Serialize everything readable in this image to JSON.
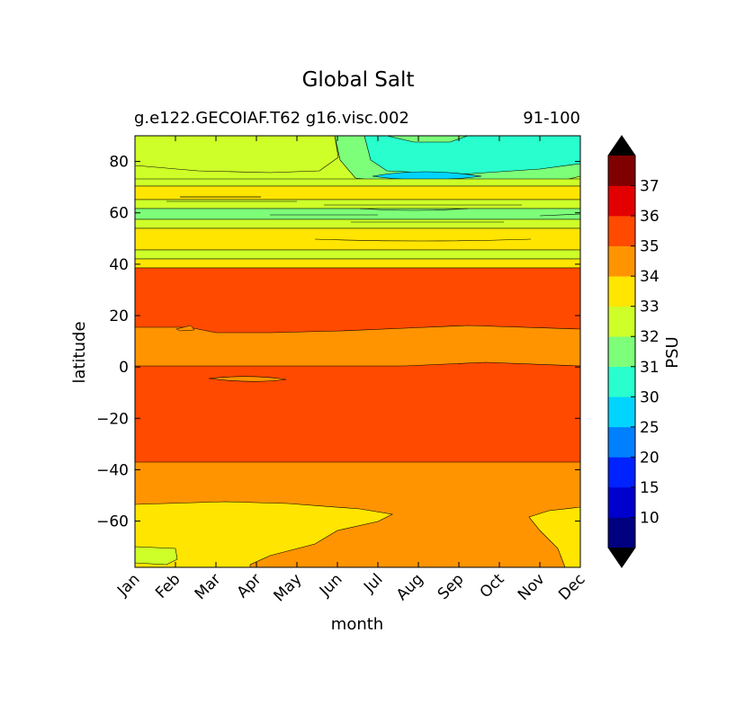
{
  "chart_data": {
    "type": "contour",
    "title": "Global Salt",
    "subtitle_left": "g.e122.GECOIAF.T62 g16.visc.002",
    "subtitle_right": "91-100",
    "xlabel": "month",
    "ylabel": "latitude",
    "colorbar_label": "PSU",
    "x_categories": [
      "Jan",
      "Feb",
      "Mar",
      "Apr",
      "May",
      "Jun",
      "Jul",
      "Aug",
      "Sep",
      "Oct",
      "Nov",
      "Dec"
    ],
    "ylim": [
      -78,
      90
    ],
    "y_ticks": [
      -60,
      -40,
      -20,
      0,
      20,
      40,
      60,
      80
    ],
    "y_tick_labels": [
      "−60",
      "−40",
      "−20",
      "0",
      "20",
      "40",
      "60",
      "80"
    ],
    "colorbar_levels": [
      5,
      10,
      15,
      20,
      25,
      30,
      31,
      32,
      33,
      34,
      35,
      36,
      37,
      38
    ],
    "colorbar_tick_labels": [
      "10",
      "15",
      "20",
      "25",
      "30",
      "31",
      "32",
      "33",
      "34",
      "35",
      "36",
      "37"
    ],
    "colorbar_colors": [
      "#000080",
      "#0000cd",
      "#0022ff",
      "#0080ff",
      "#00d4ff",
      "#29ffce",
      "#7dff7a",
      "#ceff29",
      "#ffe500",
      "#ff9400",
      "#ff4a00",
      "#e30000",
      "#800000"
    ],
    "colorbar_extend": "both",
    "latitude_bands": [
      {
        "from": 38,
        "to": 42,
        "value": 34.5
      },
      {
        "from": 15,
        "to": 38,
        "value": 35.5
      },
      {
        "from": 0,
        "to": 15,
        "value": 34.5
      },
      {
        "from": -38,
        "to": 0,
        "value": 35.5
      },
      {
        "from": -55,
        "to": -38,
        "value": 34.5
      }
    ]
  }
}
